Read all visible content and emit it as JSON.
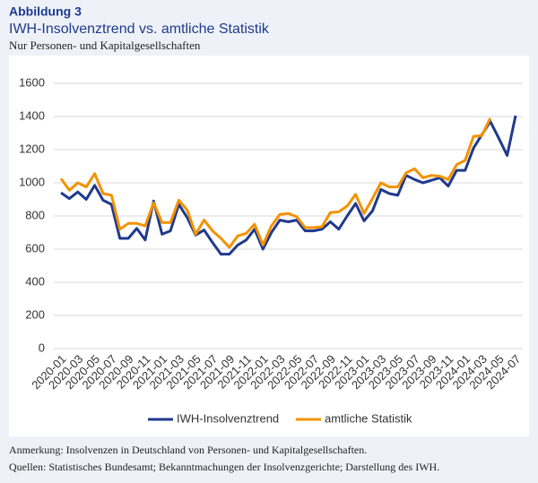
{
  "figure_label": "Abbildung 3",
  "chart_data": {
    "type": "line",
    "title": "IWH-Insolvenztrend vs. amtliche Statistik",
    "subtitle": "Nur Personen- und Kapitalgesellschaften",
    "categories": [
      "2020-01",
      null,
      "2020-03",
      null,
      "2020-05",
      null,
      "2020-07",
      null,
      "2020-09",
      null,
      "2020-11",
      null,
      "2021-01",
      null,
      "2021-03",
      null,
      "2021-05",
      null,
      "2021-07",
      null,
      "2021-09",
      null,
      "2021-11",
      null,
      "2022-01",
      null,
      "2022-03",
      null,
      "2022-05",
      null,
      "2022-07",
      null,
      "2022-09",
      null,
      "2022-11",
      null,
      "2023-01",
      null,
      "2023-03",
      null,
      "2023-05",
      null,
      "2023-07",
      null,
      "2023-09",
      null,
      "2023-11",
      null,
      "2024-01",
      null,
      "2024-03",
      null,
      "2024-05",
      null,
      "2024-07"
    ],
    "series": [
      {
        "name": "IWH-Insolvenztrend",
        "color": "#1f3a8c",
        "values": [
          940,
          905,
          945,
          900,
          985,
          895,
          870,
          665,
          665,
          725,
          655,
          890,
          690,
          710,
          870,
          790,
          685,
          715,
          640,
          570,
          570,
          625,
          655,
          720,
          600,
          700,
          775,
          765,
          775,
          710,
          710,
          720,
          765,
          720,
          800,
          875,
          770,
          830,
          960,
          935,
          925,
          1045,
          1020,
          1000,
          1015,
          1030,
          980,
          1075,
          1075,
          1210,
          1290,
          1370,
          1270,
          1165,
          1405
        ]
      },
      {
        "name": "amtliche Statistik",
        "color": "#f39200",
        "values": [
          1025,
          955,
          1000,
          975,
          1055,
          935,
          925,
          720,
          755,
          755,
          740,
          880,
          760,
          760,
          895,
          835,
          690,
          775,
          710,
          665,
          610,
          680,
          695,
          750,
          625,
          740,
          810,
          815,
          795,
          730,
          730,
          735,
          820,
          825,
          860,
          930,
          815,
          905,
          1000,
          975,
          975,
          1060,
          1085,
          1030,
          1045,
          1040,
          1020,
          1110,
          1135,
          1280,
          1285,
          1390,
          null,
          null,
          null
        ]
      }
    ],
    "ylim": [
      0,
      1600
    ],
    "yticks": [
      0,
      200,
      400,
      600,
      800,
      1000,
      1200,
      1400,
      1600
    ],
    "grid": true,
    "legend": "bottom"
  },
  "notes": [
    "Anmerkung: Insolvenzen in Deutschland von Personen- und Kapitalgesellschaften.",
    "Quellen: Statistisches Bundesamt; Bekanntmachungen der Insolvenzgerichte; Darstellung des IWH."
  ]
}
